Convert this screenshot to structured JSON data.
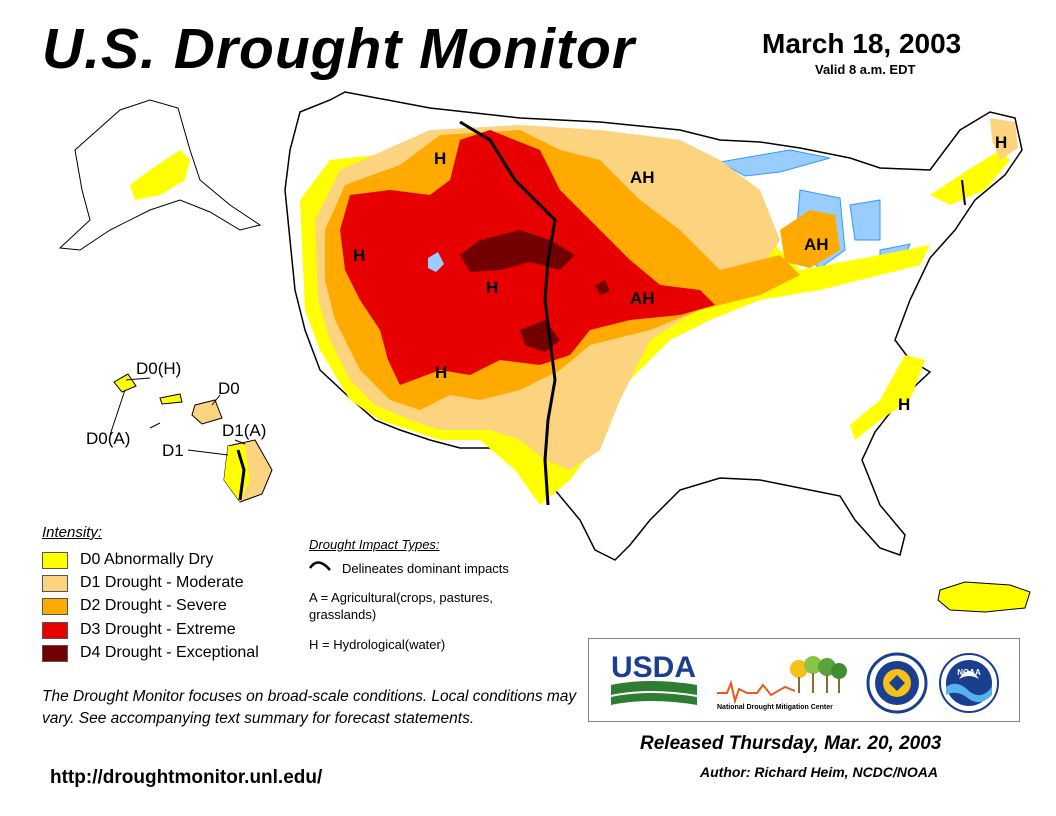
{
  "header": {
    "title": "U.S. Drought Monitor",
    "date": "March 18, 2003",
    "valid": "Valid 8 a.m. EDT"
  },
  "colors": {
    "d0": "#ffff00",
    "d1": "#fcd37f",
    "d2": "#ffaa00",
    "d3": "#e60000",
    "d4": "#730000",
    "water": "#99ccff",
    "rivers": "#3399ff"
  },
  "map_labels": {
    "h_montana": "H",
    "ah_dakota": "AH",
    "h_northeast": "H",
    "h_great_basin": "H",
    "h_colorado": "H",
    "ah_kansas": "AH",
    "ah_michigan": "AH",
    "h_arizona": "H",
    "h_carolina": "H"
  },
  "hawaii_labels": {
    "d0h": "D0(H)",
    "d0": "D0",
    "d0a": "D0(A)",
    "d1a": "D1(A)",
    "d1": "D1"
  },
  "legend": {
    "title": "Intensity:",
    "items": [
      {
        "label": "D0 Abnormally Dry",
        "color": "#ffff00"
      },
      {
        "label": "D1 Drought - Moderate",
        "color": "#fcd37f"
      },
      {
        "label": "D2 Drought - Severe",
        "color": "#ffaa00"
      },
      {
        "label": "D3 Drought - Extreme",
        "color": "#e60000"
      },
      {
        "label": "D4 Drought - Exceptional",
        "color": "#730000"
      }
    ]
  },
  "impacts": {
    "title": "Drought Impact Types:",
    "line": "Delineates dominant impacts",
    "agricultural": "A = Agricultural(crops, pastures, grasslands)",
    "hydrological": "H = Hydrological(water)"
  },
  "disclaimer": "The Drought Monitor focuses on broad-scale conditions. Local conditions may vary. See accompanying text summary for forecast statements.",
  "url": "http://droughtmonitor.unl.edu/",
  "released": "Released Thursday, Mar. 20, 2003",
  "author": "Author: Richard Heim, NCDC/NOAA",
  "logos": {
    "usda": "USDA",
    "ndmc": "National Drought Mitigation Center",
    "noaa": "NOAA"
  }
}
